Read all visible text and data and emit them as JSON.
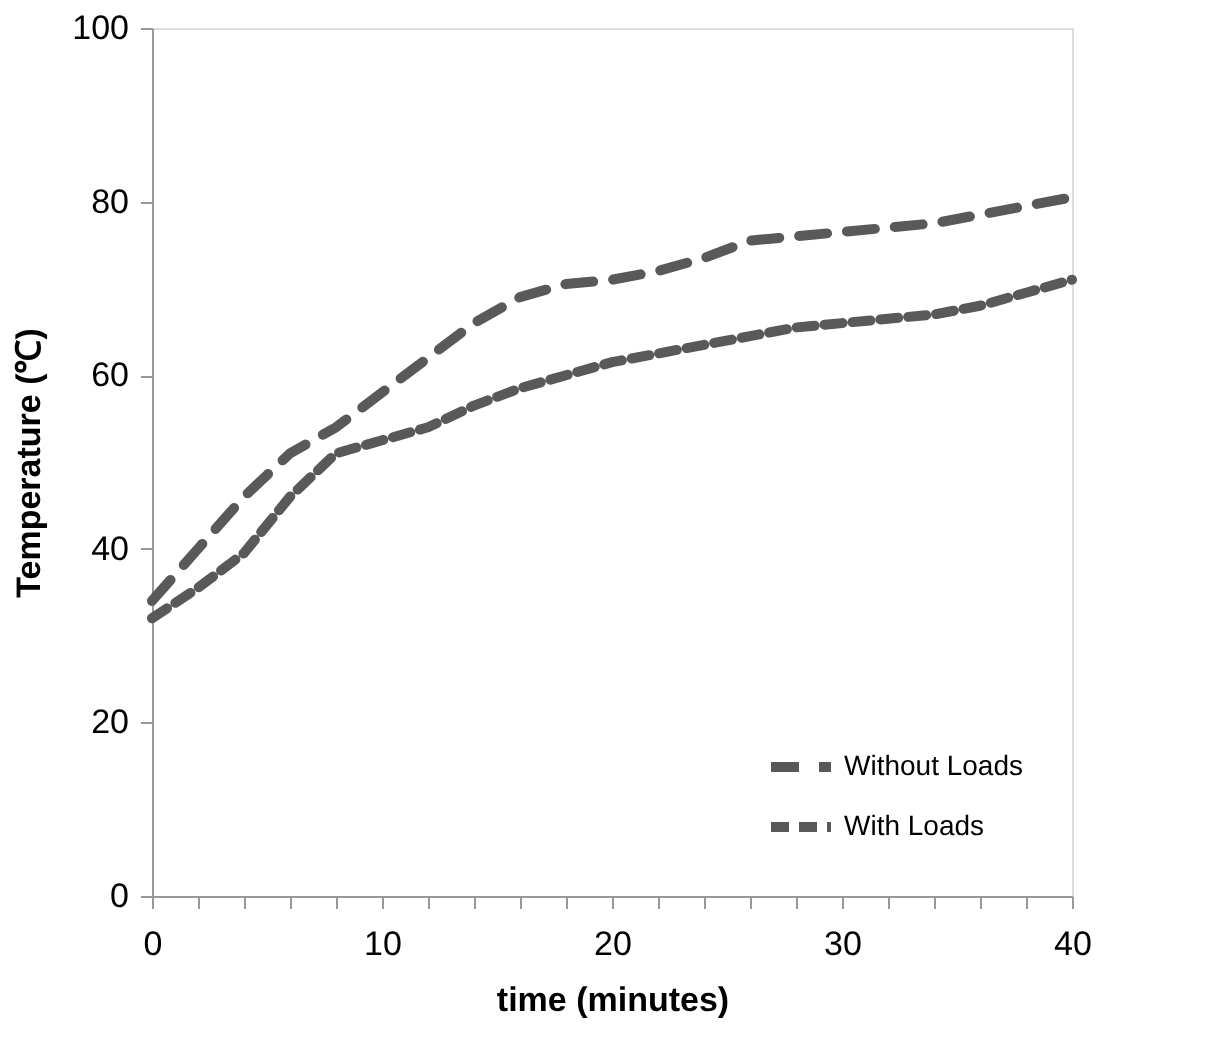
{
  "chart_data": {
    "type": "line",
    "xlabel": "time (minutes)",
    "ylabel": "Temperature (℃)",
    "x": [
      0,
      2,
      4,
      6,
      8,
      10,
      12,
      14,
      16,
      18,
      20,
      22,
      24,
      26,
      28,
      30,
      32,
      34,
      36,
      38,
      40
    ],
    "series": [
      {
        "name": "Without Loads",
        "color": "#595959",
        "line_style": "dashed",
        "values": [
          34,
          40,
          46,
          51,
          54,
          58,
          62,
          66,
          69,
          70.5,
          71,
          72,
          73.5,
          75.5,
          76,
          76.5,
          77,
          77.5,
          78.5,
          79.5,
          80.5
        ]
      },
      {
        "name": "With Loads",
        "color": "#595959",
        "line_style": "dashed",
        "values": [
          32,
          35.5,
          39.5,
          46,
          51,
          52.5,
          54,
          56.5,
          58.5,
          60,
          61.5,
          62.5,
          63.5,
          64.5,
          65.5,
          66,
          66.5,
          67,
          68,
          69.5,
          71
        ]
      }
    ],
    "xlim": [
      0,
      40
    ],
    "ylim": [
      0,
      100
    ],
    "xticks": [
      0,
      {
        "value": 2,
        "label": null
      },
      {
        "value": 4,
        "label": null
      },
      {
        "value": 6,
        "label": null
      },
      {
        "value": 8,
        "label": null
      },
      10,
      {
        "value": 12,
        "label": null
      },
      {
        "value": 14,
        "label": null
      },
      {
        "value": 16,
        "label": null
      },
      {
        "value": 18,
        "label": null
      },
      20,
      {
        "value": 22,
        "label": null
      },
      {
        "value": 24,
        "label": null
      },
      {
        "value": 26,
        "label": null
      },
      {
        "value": 28,
        "label": null
      },
      30,
      {
        "value": 32,
        "label": null
      },
      {
        "value": 34,
        "label": null
      },
      {
        "value": 36,
        "label": null
      },
      {
        "value": 38,
        "label": null
      },
      40
    ],
    "yticks": [
      0,
      20,
      40,
      60,
      80,
      100
    ],
    "grid": false,
    "legend": "bottom right",
    "marker": "none"
  }
}
